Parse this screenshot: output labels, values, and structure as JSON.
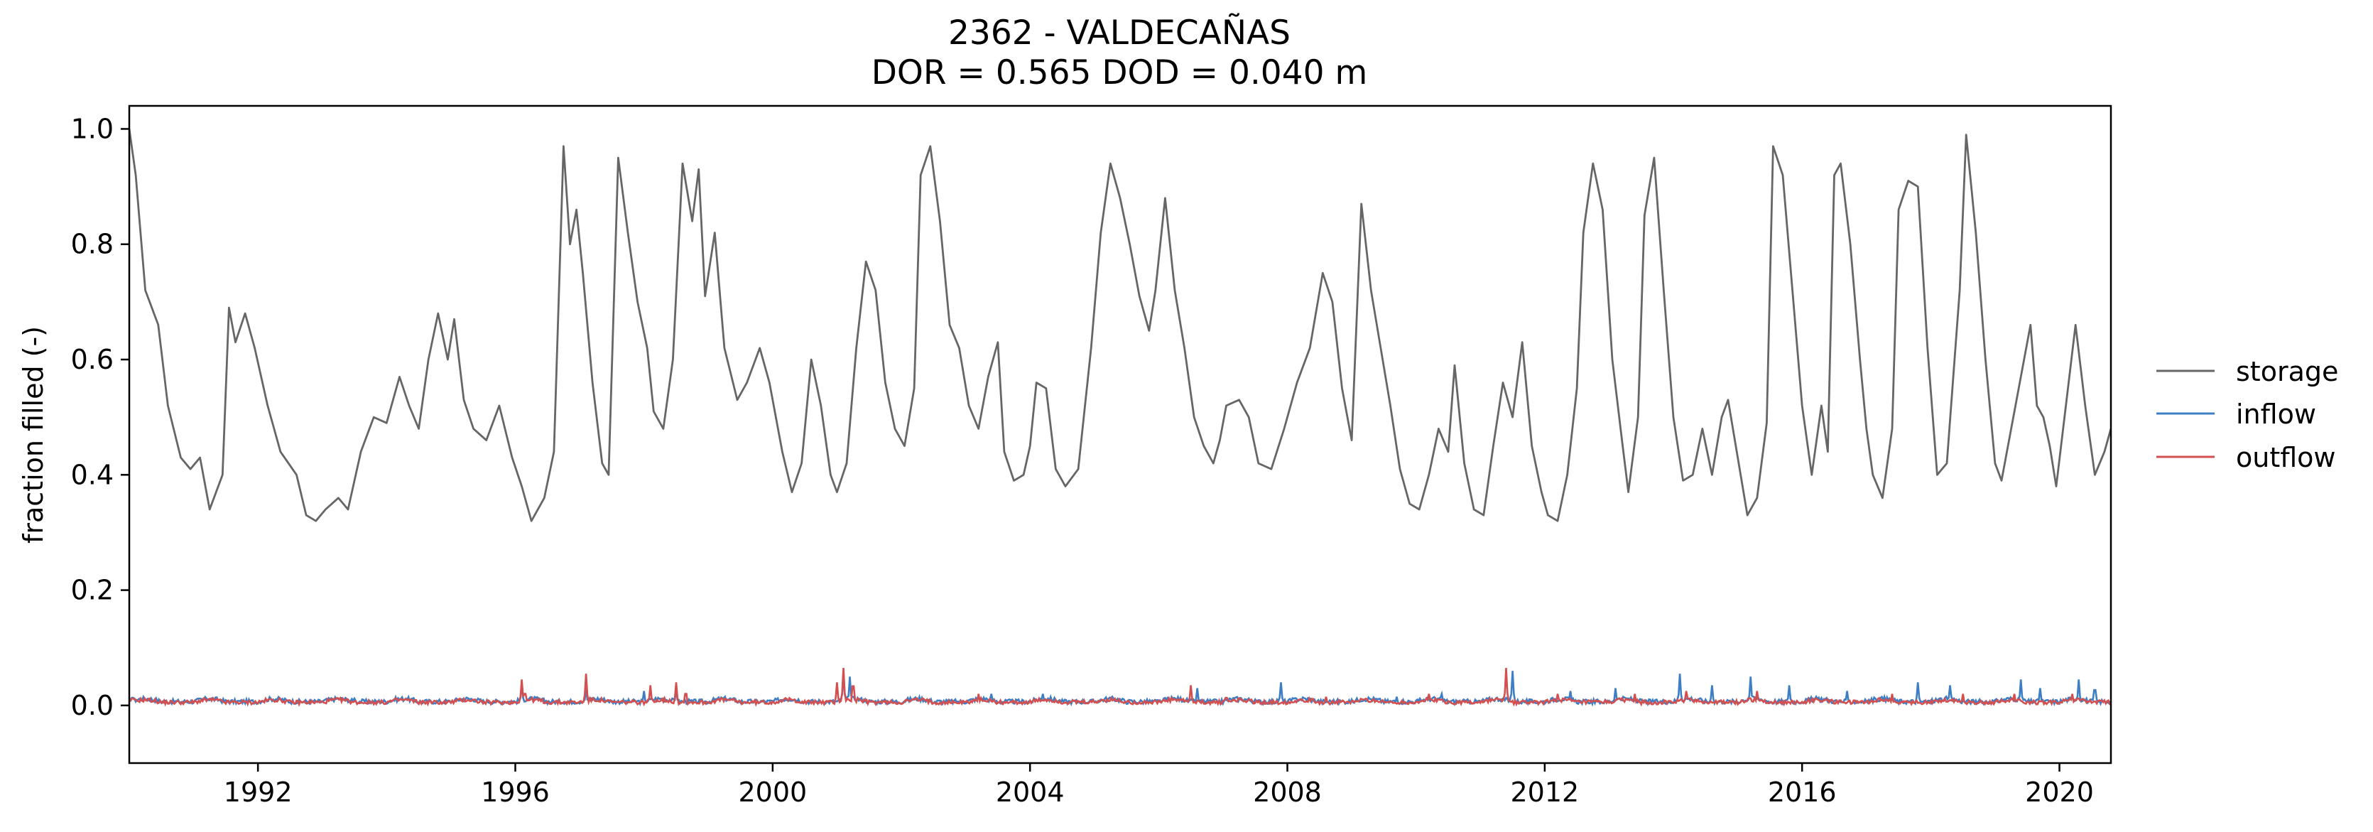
{
  "chart_data": {
    "type": "line",
    "title": "2362 - VALDECAÑAS",
    "subtitle": "DOR = 0.565  DOD = 0.040 m",
    "xlabel": "",
    "ylabel": "fraction filled (-)",
    "xlim": [
      1990.0,
      2020.8
    ],
    "ylim": [
      -0.1,
      1.04
    ],
    "xticks": [
      1992,
      1996,
      2000,
      2004,
      2008,
      2012,
      2016,
      2020
    ],
    "yticks": [
      0.0,
      0.2,
      0.4,
      0.6,
      0.8,
      1.0
    ],
    "ytick_labels": [
      "0.0",
      "0.2",
      "0.4",
      "0.6",
      "0.8",
      "1.0"
    ],
    "grid": false,
    "legend_position": "right, outside plot",
    "series": [
      {
        "name": "storage",
        "color": "#666666",
        "points": [
          [
            1990.0,
            1.0
          ],
          [
            1990.1,
            0.92
          ],
          [
            1990.25,
            0.72
          ],
          [
            1990.45,
            0.66
          ],
          [
            1990.6,
            0.52
          ],
          [
            1990.8,
            0.43
          ],
          [
            1990.95,
            0.41
          ],
          [
            1991.1,
            0.43
          ],
          [
            1991.25,
            0.34
          ],
          [
            1991.45,
            0.4
          ],
          [
            1991.55,
            0.69
          ],
          [
            1991.65,
            0.63
          ],
          [
            1991.8,
            0.68
          ],
          [
            1991.95,
            0.62
          ],
          [
            1992.15,
            0.52
          ],
          [
            1992.35,
            0.44
          ],
          [
            1992.6,
            0.4
          ],
          [
            1992.75,
            0.33
          ],
          [
            1992.9,
            0.32
          ],
          [
            1993.05,
            0.34
          ],
          [
            1993.25,
            0.36
          ],
          [
            1993.4,
            0.34
          ],
          [
            1993.6,
            0.44
          ],
          [
            1993.8,
            0.5
          ],
          [
            1994.0,
            0.49
          ],
          [
            1994.2,
            0.57
          ],
          [
            1994.35,
            0.52
          ],
          [
            1994.5,
            0.48
          ],
          [
            1994.65,
            0.6
          ],
          [
            1994.8,
            0.68
          ],
          [
            1994.95,
            0.6
          ],
          [
            1995.05,
            0.67
          ],
          [
            1995.2,
            0.53
          ],
          [
            1995.35,
            0.48
          ],
          [
            1995.55,
            0.46
          ],
          [
            1995.75,
            0.52
          ],
          [
            1995.95,
            0.43
          ],
          [
            1996.1,
            0.38
          ],
          [
            1996.25,
            0.32
          ],
          [
            1996.45,
            0.36
          ],
          [
            1996.6,
            0.44
          ],
          [
            1996.75,
            0.97
          ],
          [
            1996.85,
            0.8
          ],
          [
            1996.95,
            0.86
          ],
          [
            1997.05,
            0.75
          ],
          [
            1997.2,
            0.56
          ],
          [
            1997.35,
            0.42
          ],
          [
            1997.45,
            0.4
          ],
          [
            1997.6,
            0.95
          ],
          [
            1997.75,
            0.82
          ],
          [
            1997.9,
            0.7
          ],
          [
            1998.05,
            0.62
          ],
          [
            1998.15,
            0.51
          ],
          [
            1998.3,
            0.48
          ],
          [
            1998.45,
            0.6
          ],
          [
            1998.6,
            0.94
          ],
          [
            1998.75,
            0.84
          ],
          [
            1998.85,
            0.93
          ],
          [
            1998.95,
            0.71
          ],
          [
            1999.1,
            0.82
          ],
          [
            1999.25,
            0.62
          ],
          [
            1999.45,
            0.53
          ],
          [
            1999.6,
            0.56
          ],
          [
            1999.8,
            0.62
          ],
          [
            1999.95,
            0.56
          ],
          [
            2000.15,
            0.44
          ],
          [
            2000.3,
            0.37
          ],
          [
            2000.45,
            0.42
          ],
          [
            2000.6,
            0.6
          ],
          [
            2000.75,
            0.52
          ],
          [
            2000.9,
            0.4
          ],
          [
            2001.0,
            0.37
          ],
          [
            2001.15,
            0.42
          ],
          [
            2001.3,
            0.62
          ],
          [
            2001.45,
            0.77
          ],
          [
            2001.6,
            0.72
          ],
          [
            2001.75,
            0.56
          ],
          [
            2001.9,
            0.48
          ],
          [
            2002.05,
            0.45
          ],
          [
            2002.2,
            0.55
          ],
          [
            2002.3,
            0.92
          ],
          [
            2002.45,
            0.97
          ],
          [
            2002.6,
            0.84
          ],
          [
            2002.75,
            0.66
          ],
          [
            2002.9,
            0.62
          ],
          [
            2003.05,
            0.52
          ],
          [
            2003.2,
            0.48
          ],
          [
            2003.35,
            0.57
          ],
          [
            2003.5,
            0.63
          ],
          [
            2003.6,
            0.44
          ],
          [
            2003.75,
            0.39
          ],
          [
            2003.9,
            0.4
          ],
          [
            2004.0,
            0.45
          ],
          [
            2004.1,
            0.56
          ],
          [
            2004.25,
            0.55
          ],
          [
            2004.4,
            0.41
          ],
          [
            2004.55,
            0.38
          ],
          [
            2004.75,
            0.41
          ],
          [
            2004.95,
            0.62
          ],
          [
            2005.1,
            0.82
          ],
          [
            2005.25,
            0.94
          ],
          [
            2005.4,
            0.88
          ],
          [
            2005.55,
            0.8
          ],
          [
            2005.7,
            0.71
          ],
          [
            2005.85,
            0.65
          ],
          [
            2005.95,
            0.72
          ],
          [
            2006.1,
            0.88
          ],
          [
            2006.25,
            0.72
          ],
          [
            2006.4,
            0.62
          ],
          [
            2006.55,
            0.5
          ],
          [
            2006.7,
            0.45
          ],
          [
            2006.85,
            0.42
          ],
          [
            2006.95,
            0.46
          ],
          [
            2007.05,
            0.52
          ],
          [
            2007.25,
            0.53
          ],
          [
            2007.4,
            0.5
          ],
          [
            2007.55,
            0.42
          ],
          [
            2007.75,
            0.41
          ],
          [
            2007.95,
            0.48
          ],
          [
            2008.15,
            0.56
          ],
          [
            2008.35,
            0.62
          ],
          [
            2008.55,
            0.75
          ],
          [
            2008.7,
            0.7
          ],
          [
            2008.85,
            0.55
          ],
          [
            2009.0,
            0.46
          ],
          [
            2009.15,
            0.87
          ],
          [
            2009.3,
            0.72
          ],
          [
            2009.45,
            0.62
          ],
          [
            2009.6,
            0.52
          ],
          [
            2009.75,
            0.41
          ],
          [
            2009.9,
            0.35
          ],
          [
            2010.05,
            0.34
          ],
          [
            2010.2,
            0.4
          ],
          [
            2010.35,
            0.48
          ],
          [
            2010.5,
            0.44
          ],
          [
            2010.6,
            0.59
          ],
          [
            2010.75,
            0.42
          ],
          [
            2010.9,
            0.34
          ],
          [
            2011.05,
            0.33
          ],
          [
            2011.2,
            0.45
          ],
          [
            2011.35,
            0.56
          ],
          [
            2011.5,
            0.5
          ],
          [
            2011.65,
            0.63
          ],
          [
            2011.8,
            0.45
          ],
          [
            2011.95,
            0.37
          ],
          [
            2012.05,
            0.33
          ],
          [
            2012.2,
            0.32
          ],
          [
            2012.35,
            0.4
          ],
          [
            2012.5,
            0.55
          ],
          [
            2012.6,
            0.82
          ],
          [
            2012.75,
            0.94
          ],
          [
            2012.9,
            0.86
          ],
          [
            2013.05,
            0.6
          ],
          [
            2013.2,
            0.46
          ],
          [
            2013.3,
            0.37
          ],
          [
            2013.45,
            0.5
          ],
          [
            2013.55,
            0.85
          ],
          [
            2013.7,
            0.95
          ],
          [
            2013.85,
            0.72
          ],
          [
            2014.0,
            0.5
          ],
          [
            2014.15,
            0.39
          ],
          [
            2014.3,
            0.4
          ],
          [
            2014.45,
            0.48
          ],
          [
            2014.6,
            0.4
          ],
          [
            2014.75,
            0.5
          ],
          [
            2014.85,
            0.53
          ],
          [
            2015.0,
            0.43
          ],
          [
            2015.15,
            0.33
          ],
          [
            2015.3,
            0.36
          ],
          [
            2015.45,
            0.49
          ],
          [
            2015.55,
            0.97
          ],
          [
            2015.7,
            0.92
          ],
          [
            2015.85,
            0.72
          ],
          [
            2016.0,
            0.52
          ],
          [
            2016.15,
            0.4
          ],
          [
            2016.3,
            0.52
          ],
          [
            2016.4,
            0.44
          ],
          [
            2016.5,
            0.92
          ],
          [
            2016.6,
            0.94
          ],
          [
            2016.75,
            0.8
          ],
          [
            2016.9,
            0.6
          ],
          [
            2017.0,
            0.48
          ],
          [
            2017.1,
            0.4
          ],
          [
            2017.25,
            0.36
          ],
          [
            2017.4,
            0.48
          ],
          [
            2017.5,
            0.86
          ],
          [
            2017.65,
            0.91
          ],
          [
            2017.8,
            0.9
          ],
          [
            2017.95,
            0.62
          ],
          [
            2018.1,
            0.4
          ],
          [
            2018.25,
            0.42
          ],
          [
            2018.45,
            0.72
          ],
          [
            2018.55,
            0.99
          ],
          [
            2018.7,
            0.82
          ],
          [
            2018.85,
            0.6
          ],
          [
            2019.0,
            0.42
          ],
          [
            2019.1,
            0.39
          ],
          [
            2019.25,
            0.48
          ],
          [
            2019.4,
            0.57
          ],
          [
            2019.55,
            0.66
          ],
          [
            2019.65,
            0.52
          ],
          [
            2019.75,
            0.5
          ],
          [
            2019.85,
            0.45
          ],
          [
            2019.95,
            0.38
          ],
          [
            2020.1,
            0.52
          ],
          [
            2020.25,
            0.66
          ],
          [
            2020.4,
            0.52
          ],
          [
            2020.55,
            0.4
          ],
          [
            2020.7,
            0.44
          ],
          [
            2020.8,
            0.48
          ]
        ]
      },
      {
        "name": "inflow",
        "color": "#3d7ec4",
        "baseline": 0.005,
        "noise_amplitude": 0.008,
        "peaks": [
          [
            1990.05,
            0.02
          ],
          [
            1991.2,
            0.012
          ],
          [
            1993.5,
            0.012
          ],
          [
            1994.3,
            0.012
          ],
          [
            1996.1,
            0.04
          ],
          [
            1997.1,
            0.03
          ],
          [
            1998.0,
            0.025
          ],
          [
            1998.5,
            0.03
          ],
          [
            2001.1,
            0.06
          ],
          [
            2001.2,
            0.05
          ],
          [
            2003.4,
            0.02
          ],
          [
            2004.2,
            0.02
          ],
          [
            2006.6,
            0.03
          ],
          [
            2007.9,
            0.04
          ],
          [
            2009.7,
            0.015
          ],
          [
            2010.4,
            0.02
          ],
          [
            2011.5,
            0.06
          ],
          [
            2012.4,
            0.025
          ],
          [
            2013.1,
            0.03
          ],
          [
            2014.1,
            0.055
          ],
          [
            2014.6,
            0.035
          ],
          [
            2015.2,
            0.05
          ],
          [
            2015.8,
            0.035
          ],
          [
            2016.7,
            0.025
          ],
          [
            2017.8,
            0.04
          ],
          [
            2018.3,
            0.035
          ],
          [
            2019.4,
            0.045
          ],
          [
            2019.7,
            0.03
          ],
          [
            2020.3,
            0.045
          ],
          [
            2020.55,
            0.04
          ]
        ]
      },
      {
        "name": "outflow",
        "color": "#d45050",
        "baseline": 0.004,
        "noise_amplitude": 0.007,
        "peaks": [
          [
            1990.05,
            0.018
          ],
          [
            1991.3,
            0.01
          ],
          [
            1996.1,
            0.045
          ],
          [
            1996.15,
            0.03
          ],
          [
            1997.1,
            0.055
          ],
          [
            1998.1,
            0.035
          ],
          [
            1998.5,
            0.04
          ],
          [
            1998.65,
            0.03
          ],
          [
            2001.0,
            0.04
          ],
          [
            2001.1,
            0.065
          ],
          [
            2001.25,
            0.05
          ],
          [
            2003.2,
            0.02
          ],
          [
            2006.5,
            0.035
          ],
          [
            2007.05,
            0.02
          ],
          [
            2008.6,
            0.015
          ],
          [
            2010.2,
            0.02
          ],
          [
            2011.4,
            0.065
          ],
          [
            2012.2,
            0.02
          ],
          [
            2013.4,
            0.02
          ],
          [
            2014.2,
            0.025
          ],
          [
            2015.3,
            0.025
          ],
          [
            2017.4,
            0.02
          ],
          [
            2018.5,
            0.02
          ],
          [
            2019.3,
            0.02
          ],
          [
            2020.2,
            0.02
          ]
        ]
      }
    ]
  }
}
